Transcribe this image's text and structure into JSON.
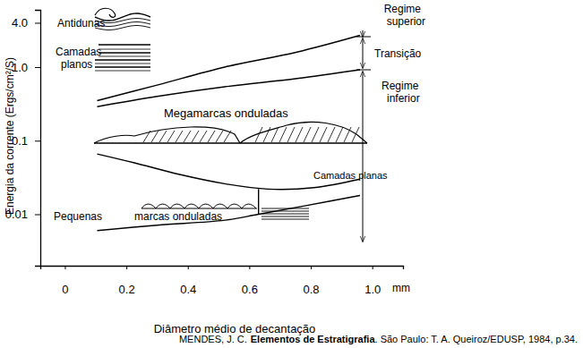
{
  "chart_data": {
    "type": "line",
    "log": "y",
    "grid": false,
    "color": "#000000",
    "x_label": "Diâmetro médio de decantação",
    "y_label": "Energia da corrente (Ergs/cm²/S)",
    "xlim": [
      -0.08,
      1.1
    ],
    "ylim": [
      0.002,
      6
    ],
    "xticks": [
      0,
      0.2,
      0.4,
      0.6,
      0.8,
      {
        "value": 1,
        "label": "1.0"
      }
    ],
    "yticks": [
      0.01,
      0.1,
      {
        "value": 1,
        "label": "1.0"
      },
      {
        "value": 4,
        "label": "4.0"
      }
    ],
    "series": [
      {
        "x": [
          0.105,
          0.3,
          0.52,
          0.755,
          0.96
        ],
        "values": [
          0.35,
          0.57,
          1.0,
          1.6,
          2.7
        ]
      },
      {
        "x": [
          0.105,
          0.3,
          0.52,
          0.755,
          0.96
        ],
        "values": [
          0.29,
          0.4,
          0.54,
          0.7,
          0.92
        ]
      },
      {
        "x": [
          0.105,
          0.226,
          0.37,
          0.52,
          0.66,
          0.81,
          0.96
        ],
        "values": [
          0.066,
          0.05,
          0.035,
          0.026,
          0.022,
          0.023,
          0.03
        ]
      },
      {
        "x": [
          0.105,
          0.3,
          0.52,
          0.63,
          0.78,
          0.96
        ],
        "values": [
          0.006,
          0.0071,
          0.0083,
          0.01,
          0.013,
          0.018
        ]
      },
      {
        "x": [
          0.63,
          0.63
        ],
        "values": [
          0.022,
          0.01
        ]
      }
    ],
    "annotations": [
      "Antidunas",
      "Camadas planos",
      "Megamarcas onduladas",
      "Pequenas",
      "marcas onduladas",
      "Camadas planas",
      "Regime superior",
      "Transição",
      "Regime inferior",
      "mm"
    ],
    "source": [
      "MENDES, J. C.",
      "Elementos de Estratigrafia",
      ". São Paulo: T. A. Queiroz/EDUSP, 1984, p.34."
    ]
  }
}
